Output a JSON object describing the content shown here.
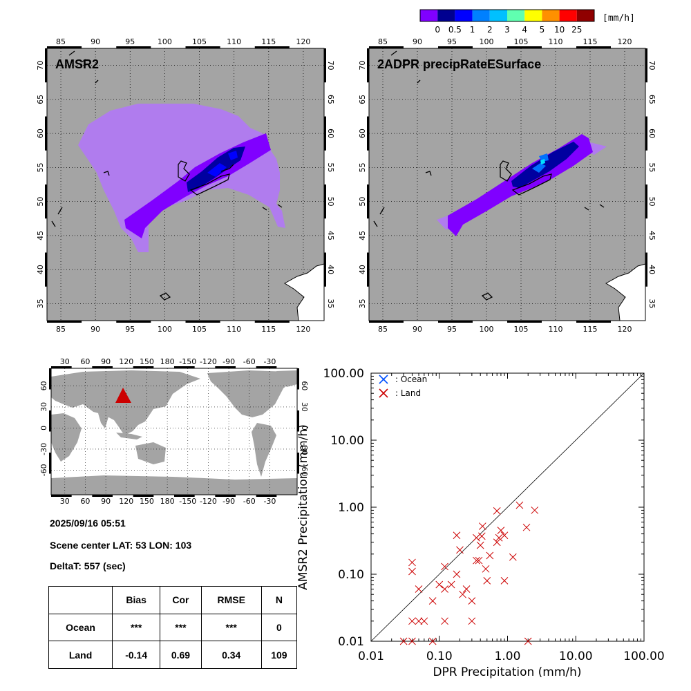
{
  "colorbar": {
    "unit": "[mm/h]",
    "colors": [
      "#8000ff",
      "#000090",
      "#0000ff",
      "#0080ff",
      "#00c0ff",
      "#60ffb0",
      "#ffff00",
      "#ff9000",
      "#ff0000",
      "#900000"
    ],
    "ticks": [
      "0",
      "0.5",
      "1",
      "2",
      "3",
      "4",
      "5",
      "10",
      "25"
    ]
  },
  "map_left": {
    "title": "AMSR2",
    "lon_ticks": [
      "85",
      "90",
      "95",
      "100",
      "105",
      "110",
      "115",
      "120"
    ],
    "lat_ticks": [
      "35",
      "40",
      "45",
      "50",
      "55",
      "60",
      "65",
      "70"
    ]
  },
  "map_right": {
    "title": "2ADPR precipRateESurface",
    "lon_ticks": [
      "85",
      "90",
      "95",
      "100",
      "105",
      "110",
      "115",
      "120"
    ],
    "lat_ticks": [
      "35",
      "40",
      "45",
      "50",
      "55",
      "60",
      "65",
      "70"
    ]
  },
  "globe": {
    "lon_ticks": [
      "30",
      "60",
      "90",
      "120",
      "150",
      "180",
      "-150",
      "-120",
      "-90",
      "-60",
      "-30"
    ],
    "lat_ticks": [
      "60",
      "30",
      "0",
      "-30",
      "-60"
    ],
    "marker_color": "#cc0000"
  },
  "info": {
    "datetime": "2025/09/16 05:51",
    "scene_center": "Scene center LAT: 53   LON: 103",
    "deltat": "DeltaT:  557 (sec)"
  },
  "stats": {
    "headers": [
      "",
      "Bias",
      "Cor",
      "RMSE",
      "N"
    ],
    "rows": [
      {
        "label": "Ocean",
        "bias": "***",
        "cor": "***",
        "rmse": "***",
        "n": "0"
      },
      {
        "label": "Land",
        "bias": "-0.14",
        "cor": "0.69",
        "rmse": "0.34",
        "n": "109"
      }
    ]
  },
  "chart_data": {
    "type": "scatter",
    "xscale": "log",
    "yscale": "log",
    "xlim": [
      0.01,
      100
    ],
    "ylim": [
      0.01,
      100
    ],
    "xlabel": "DPR Precipitation (mm/h)",
    "ylabel": "AMSR2 Precipitation (mm/h)",
    "x_tick_labels": [
      "0.01",
      "0.10",
      "1.00",
      "10.00",
      "100.00"
    ],
    "y_tick_labels": [
      "0.01",
      "0.10",
      "1.00",
      "10.00",
      "100.00"
    ],
    "legend": [
      {
        "name": ": Ocean",
        "color": "#0050ff"
      },
      {
        "name": ": Land",
        "color": "#cc0000"
      }
    ],
    "series": [
      {
        "name": "Ocean",
        "color": "#0050ff",
        "points": []
      },
      {
        "name": "Land",
        "color": "#cc0000",
        "points": [
          [
            0.03,
            0.01
          ],
          [
            0.04,
            0.01
          ],
          [
            0.08,
            0.01
          ],
          [
            2.0,
            0.01
          ],
          [
            0.04,
            0.02
          ],
          [
            0.05,
            0.02
          ],
          [
            0.06,
            0.02
          ],
          [
            0.12,
            0.02
          ],
          [
            0.3,
            0.02
          ],
          [
            0.08,
            0.04
          ],
          [
            0.3,
            0.04
          ],
          [
            0.25,
            0.06
          ],
          [
            0.5,
            0.08
          ],
          [
            0.9,
            0.08
          ],
          [
            0.1,
            0.07
          ],
          [
            0.15,
            0.07
          ],
          [
            0.12,
            0.06
          ],
          [
            0.22,
            0.05
          ],
          [
            0.05,
            0.06
          ],
          [
            0.04,
            0.11
          ],
          [
            0.04,
            0.15
          ],
          [
            0.12,
            0.13
          ],
          [
            0.18,
            0.1
          ],
          [
            0.35,
            0.16
          ],
          [
            0.38,
            0.16
          ],
          [
            0.48,
            0.12
          ],
          [
            0.55,
            0.19
          ],
          [
            0.7,
            0.3
          ],
          [
            1.2,
            0.18
          ],
          [
            0.2,
            0.23
          ],
          [
            0.4,
            0.27
          ],
          [
            0.35,
            0.35
          ],
          [
            0.42,
            0.37
          ],
          [
            0.75,
            0.35
          ],
          [
            0.9,
            0.38
          ],
          [
            0.18,
            0.38
          ],
          [
            0.8,
            0.45
          ],
          [
            0.43,
            0.52
          ],
          [
            0.7,
            0.88
          ],
          [
            1.9,
            0.5
          ],
          [
            1.5,
            1.07
          ],
          [
            2.5,
            0.9
          ]
        ]
      }
    ]
  }
}
